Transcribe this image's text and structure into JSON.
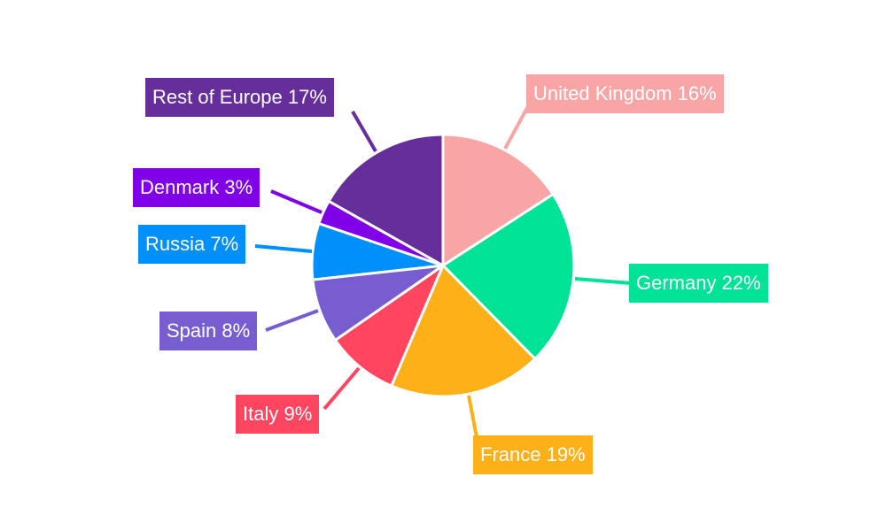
{
  "chart_data": {
    "type": "pie",
    "start_angle": "12 o'clock, clockwise",
    "unit": "%",
    "slices": [
      {
        "label": "United Kingdom",
        "value": 16,
        "color": "#f9a5a5"
      },
      {
        "label": "Germany",
        "value": 22,
        "color": "#00e396"
      },
      {
        "label": "France",
        "value": 19,
        "color": "#feb019"
      },
      {
        "label": "Italy",
        "value": 9,
        "color": "#ff4560"
      },
      {
        "label": "Spain",
        "value": 8,
        "color": "#775dd0"
      },
      {
        "label": "Russia",
        "value": 7,
        "color": "#008ffb"
      },
      {
        "label": "Denmark",
        "value": 3,
        "color": "#8000e8"
      },
      {
        "label": "Rest of Europe",
        "value": 17,
        "color": "#662e9b"
      }
    ],
    "data_labels": [
      "United Kingdom 16%",
      "Germany 22%",
      "France 19%",
      "Italy 9%",
      "Spain 8%",
      "Russia 7%",
      "Denmark 3%",
      "Rest of Europe 17%"
    ]
  }
}
